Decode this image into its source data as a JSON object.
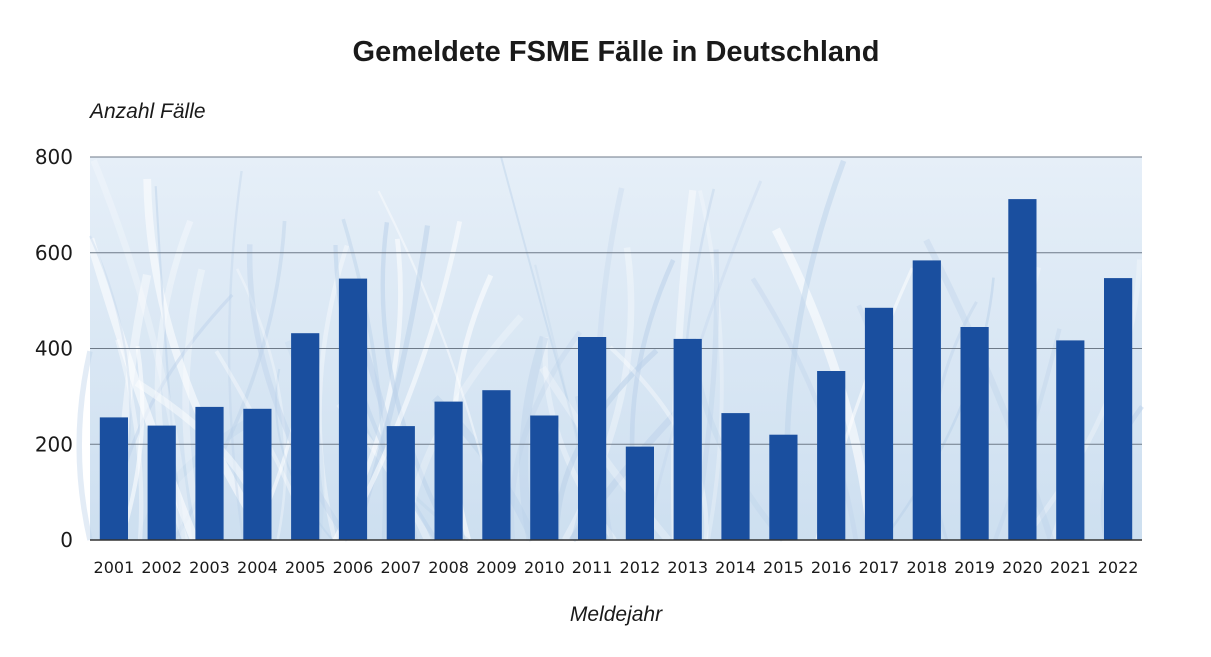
{
  "chart_data": {
    "type": "bar",
    "title": "Gemeldete FSME Fälle in Deutschland",
    "xlabel": "Meldejahr",
    "ylabel": "Anzahl Fälle",
    "categories": [
      "2001",
      "2002",
      "2003",
      "2004",
      "2005",
      "2006",
      "2007",
      "2008",
      "2009",
      "2010",
      "2011",
      "2012",
      "2013",
      "2014",
      "2015",
      "2016",
      "2017",
      "2018",
      "2019",
      "2020",
      "2021",
      "2022"
    ],
    "values": [
      256,
      239,
      278,
      274,
      432,
      546,
      238,
      289,
      313,
      260,
      424,
      195,
      420,
      265,
      220,
      353,
      485,
      584,
      445,
      712,
      417,
      547
    ],
    "ylim": [
      0,
      800
    ],
    "yticks": [
      0,
      200,
      400,
      600,
      800
    ],
    "grid": true,
    "bar_color": "#1a4f9f",
    "background_color": "#dbe8f5"
  }
}
